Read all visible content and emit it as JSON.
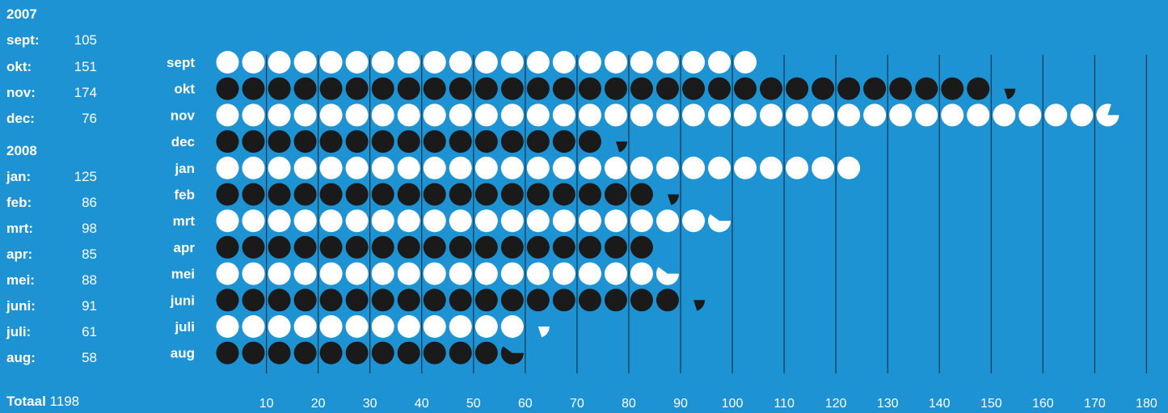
{
  "sidebar": {
    "year1": "2007",
    "year2": "2008",
    "rows2007": [
      {
        "label": "sept:",
        "value": "105"
      },
      {
        "label": "okt:",
        "value": "151"
      },
      {
        "label": "nov:",
        "value": "174"
      },
      {
        "label": "dec:",
        "value": "76"
      }
    ],
    "rows2008": [
      {
        "label": "jan:",
        "value": "125"
      },
      {
        "label": "feb:",
        "value": "86"
      },
      {
        "label": "mrt:",
        "value": "98"
      },
      {
        "label": "apr:",
        "value": "85"
      },
      {
        "label": "mei:",
        "value": "88"
      },
      {
        "label": "juni:",
        "value": "91"
      },
      {
        "label": "juli:",
        "value": "61"
      },
      {
        "label": "aug:",
        "value": "58"
      }
    ],
    "total_label": "Totaal",
    "total_value": "1198"
  },
  "chart_data": {
    "type": "bar",
    "style": "dot-pictogram",
    "units_per_dot": 5,
    "categories": [
      "sept",
      "okt",
      "nov",
      "dec",
      "jan",
      "feb",
      "mrt",
      "apr",
      "mei",
      "juni",
      "juli",
      "aug"
    ],
    "values": [
      105,
      151,
      174,
      76,
      125,
      86,
      98,
      85,
      88,
      91,
      61,
      58
    ],
    "x_ticks": [
      10,
      20,
      30,
      40,
      50,
      60,
      70,
      80,
      90,
      100,
      110,
      120,
      130,
      140,
      150,
      160,
      170,
      180
    ],
    "xlim": [
      0,
      180
    ],
    "grid": true,
    "colors": {
      "background": "#1e93d3",
      "dot_odd": "#ffffff",
      "dot_even": "#1a1a1a",
      "grid": "#0c3550",
      "text": "#ffffff"
    }
  }
}
